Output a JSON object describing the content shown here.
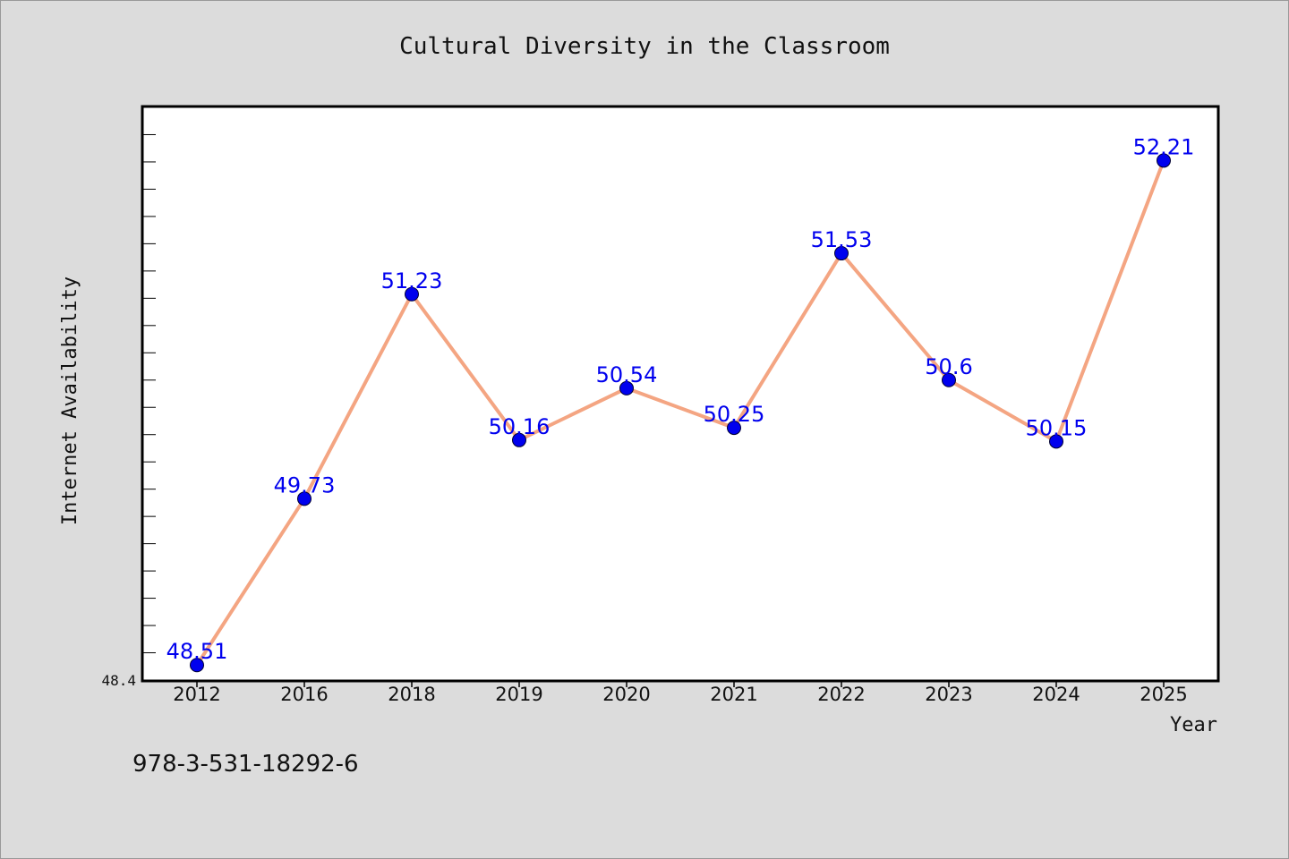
{
  "chart_data": {
    "type": "line",
    "title": "Cultural Diversity in the Classroom",
    "xlabel": "Year",
    "ylabel": "Internet Availability",
    "categories": [
      "2012",
      "2016",
      "2018",
      "2019",
      "2020",
      "2021",
      "2022",
      "2023",
      "2024",
      "2025"
    ],
    "series": [
      {
        "values": [
          48.51,
          49.73,
          51.23,
          50.16,
          50.54,
          50.25,
          51.53,
          50.6,
          50.15,
          52.21
        ],
        "labels": [
          "48.51",
          "49.73",
          "51.23",
          "50.16",
          "50.54",
          "50.25",
          "51.53",
          "50.6",
          "50.15",
          "52.21"
        ]
      }
    ],
    "ylim": [
      48.4,
      52.6
    ],
    "ymin_label": "48.4",
    "grid": false,
    "line_color": "#f4a582",
    "marker_color": "#0000ee",
    "label_color": "#0000ee"
  },
  "footer": {
    "code": "978-3-531-18292-6"
  }
}
